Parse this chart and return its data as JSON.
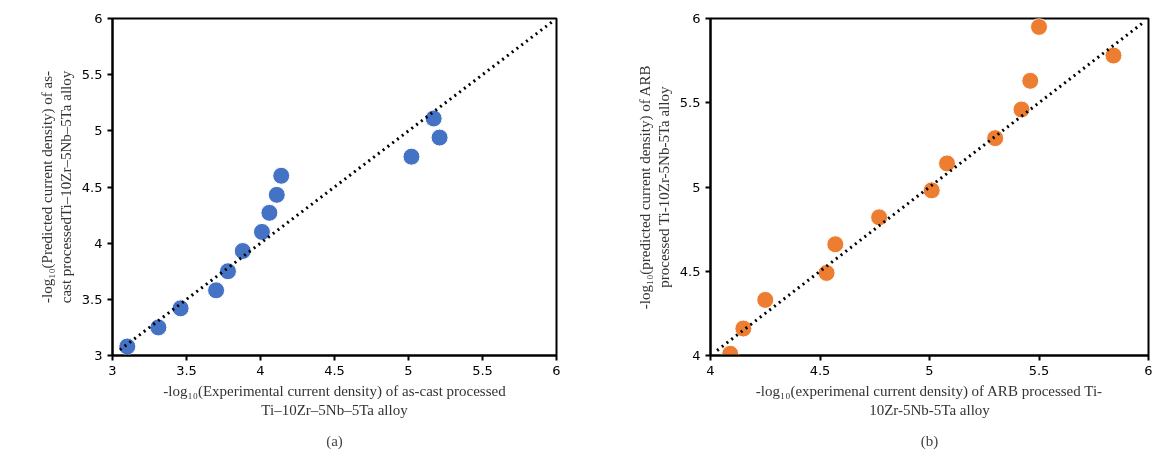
{
  "chart_data": [
    {
      "type": "scatter",
      "xlabel": "-log₁₀(Experimental current density) of as-cast processed\nTi–10Zr–5Nb–5Ta alloy",
      "ylabel": "-log₁₀(Predicted current density) of as-\ncast processedTi–10Zr–5Nb–5Ta alloy",
      "annotations": [
        "(a)"
      ],
      "xlim": [
        3,
        6
      ],
      "ylim": [
        3,
        6
      ],
      "xticks": [
        3,
        3.5,
        4,
        4.5,
        5,
        5.5,
        6
      ],
      "yticks": [
        3,
        3.5,
        4,
        4.5,
        5,
        5.5,
        6
      ],
      "grid": false,
      "marker": "circle",
      "series": [
        {
          "color": "#4472c4",
          "x": [
            3.1,
            3.31,
            3.46,
            3.7,
            3.78,
            3.88,
            4.01,
            4.06,
            4.11,
            4.14,
            5.02,
            5.17,
            5.21
          ],
          "values": [
            3.08,
            3.25,
            3.42,
            3.58,
            3.75,
            3.93,
            4.1,
            4.27,
            4.43,
            4.6,
            4.77,
            5.11,
            4.94
          ]
        },
        {
          "type": "line",
          "color": "#000000",
          "line_style": "dotted",
          "marker": "none",
          "x": [
            3.05,
            5.97
          ],
          "values": [
            3.05,
            5.97
          ]
        }
      ]
    },
    {
      "type": "scatter",
      "xlabel": "-log₁₀(experimenal current density) of ARB processed Ti-\n10Zr-5Nb-5Ta alloy",
      "ylabel": "-log₁₀(predicted current density) of ARB\nprocessed Ti-10Zr-5Nb-5Ta alloy",
      "annotations": [
        "(b)"
      ],
      "xlim": [
        4,
        6
      ],
      "ylim": [
        4,
        6
      ],
      "xticks": [
        4,
        4.5,
        5,
        5.5,
        6
      ],
      "yticks": [
        4,
        4.5,
        5,
        5.5,
        6
      ],
      "grid": false,
      "marker": "circle",
      "series": [
        {
          "color": "#ed7d31",
          "x": [
            4.09,
            4.15,
            4.25,
            4.53,
            4.57,
            4.77,
            5.01,
            5.08,
            5.3,
            5.42,
            5.46,
            5.5,
            5.84
          ],
          "values": [
            4.01,
            4.16,
            4.33,
            4.49,
            4.66,
            4.82,
            4.98,
            5.14,
            5.29,
            5.46,
            5.63,
            5.95,
            5.78
          ]
        },
        {
          "type": "line",
          "color": "#000000",
          "line_style": "dotted",
          "marker": "none",
          "x": [
            4.03,
            5.98
          ],
          "values": [
            4.03,
            5.98
          ]
        }
      ]
    }
  ]
}
